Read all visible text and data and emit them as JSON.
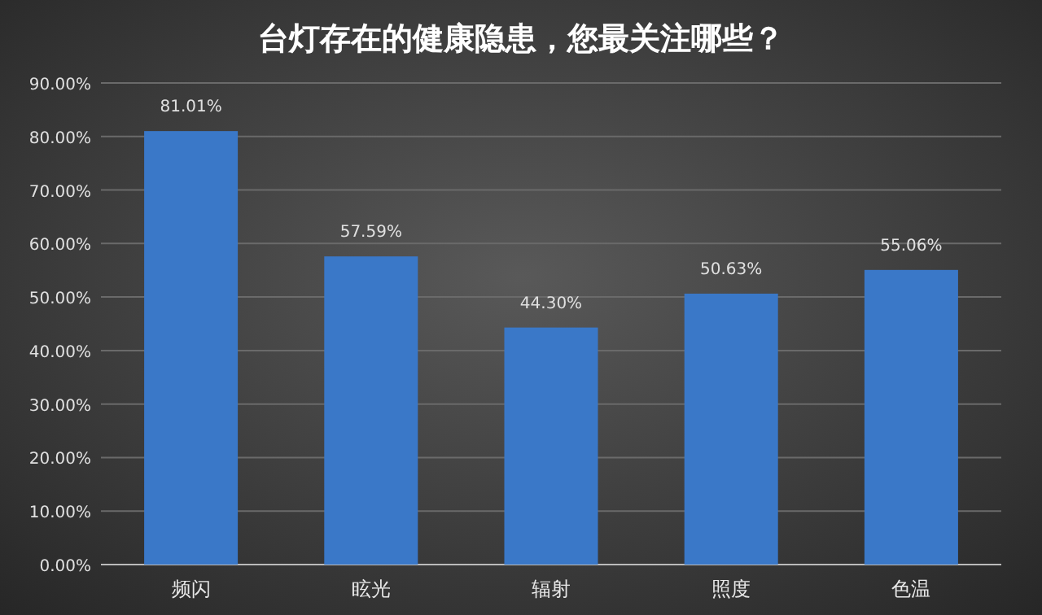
{
  "chart_data": {
    "type": "bar",
    "title": "台灯存在的健康隐患，您最关注哪些？",
    "categories": [
      "频闪",
      "眩光",
      "辐射",
      "照度",
      "色温"
    ],
    "values": [
      81.01,
      57.59,
      44.3,
      50.63,
      55.06
    ],
    "value_labels": [
      "81.01%",
      "57.59%",
      "44.30%",
      "50.63%",
      "55.06%"
    ],
    "color": "#3a78c8",
    "ylim": [
      0,
      90
    ],
    "yticks": [
      {
        "value": 0,
        "label": "0.00%"
      },
      {
        "value": 10,
        "label": "10.00%"
      },
      {
        "value": 20,
        "label": "20.00%"
      },
      {
        "value": 30,
        "label": "30.00%"
      },
      {
        "value": 40,
        "label": "40.00%"
      },
      {
        "value": 50,
        "label": "50.00%"
      },
      {
        "value": 60,
        "label": "60.00%"
      },
      {
        "value": 70,
        "label": "70.00%"
      },
      {
        "value": 80,
        "label": "80.00%"
      },
      {
        "value": 90,
        "label": "90.00%"
      }
    ],
    "grid": "y"
  }
}
